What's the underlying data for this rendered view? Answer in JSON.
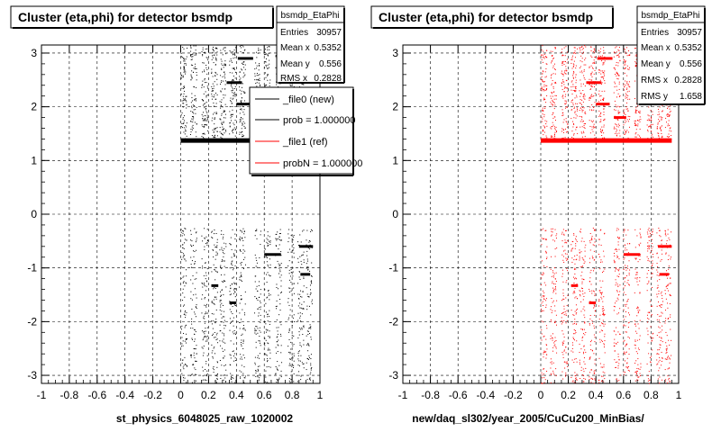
{
  "colors": {
    "new": "#000000",
    "ref": "#ff0000",
    "grid": "#000000",
    "background": "#ffffff"
  },
  "chart_data": [
    {
      "type": "scatter",
      "title": "Cluster (eta,phi) for detector bsmdp",
      "xlabel": "st_physics_6048025_raw_1020002",
      "ylabel": "",
      "xlim": [
        -1,
        1
      ],
      "ylim": [
        -3.15,
        3.15
      ],
      "x_ticks": [
        "-1",
        "-0.8",
        "-0.6",
        "-0.4",
        "-0.2",
        "0",
        "0.2",
        "0.4",
        "0.6",
        "0.8",
        "1"
      ],
      "y_ticks": [
        "3",
        "2",
        "1",
        "0",
        "-1",
        "-2",
        "-3"
      ],
      "grid": true,
      "series_color": "#000000",
      "stats": {
        "name": "bsmdp_EtaPhi",
        "rows": [
          {
            "label": "Entries",
            "value": "30957"
          },
          {
            "label": "Mean x",
            "value": "0.5352"
          },
          {
            "label": "Mean y",
            "value": "0.556"
          },
          {
            "label": "RMS x",
            "value": "0.2828"
          }
        ]
      },
      "legend": {
        "placement": "top-right",
        "entries": [
          {
            "label": "_file0 (new)",
            "color": "#000000"
          },
          {
            "label": "prob = 1.000000",
            "color": "#000000"
          },
          {
            "label": "_file1 (ref)",
            "color": "#ff0000"
          },
          {
            "label": "probN = 1.000000",
            "color": "#ff0000"
          }
        ]
      },
      "scatter_bands": {
        "eta_min": 0.0,
        "eta_max": 0.95,
        "phi_upper": [
          1.35,
          3.15
        ],
        "phi_lower": [
          -3.15,
          -0.25
        ]
      }
    },
    {
      "type": "scatter",
      "title": "Cluster (eta,phi) for detector bsmdp",
      "xlabel": "new/daq_sl302/year_2005/CuCu200_MinBias/",
      "ylabel": "",
      "xlim": [
        -1,
        1
      ],
      "ylim": [
        -3.15,
        3.15
      ],
      "x_ticks": [
        "-1",
        "-0.8",
        "-0.6",
        "-0.4",
        "-0.2",
        "0",
        "0.2",
        "0.4",
        "0.6",
        "0.8",
        "1"
      ],
      "y_ticks": [
        "3",
        "2",
        "1",
        "0",
        "-1",
        "-2",
        "-3"
      ],
      "grid": true,
      "series_color": "#ff0000",
      "stats": {
        "name": "bsmdp_EtaPhi",
        "rows": [
          {
            "label": "Entries",
            "value": "30957"
          },
          {
            "label": "Mean x",
            "value": "0.5352"
          },
          {
            "label": "Mean y",
            "value": "0.556"
          },
          {
            "label": "RMS x",
            "value": "0.2828"
          },
          {
            "label": "RMS y",
            "value": "1.658"
          }
        ]
      },
      "scatter_bands": {
        "eta_min": 0.0,
        "eta_max": 0.95,
        "phi_upper": [
          1.35,
          3.15
        ],
        "phi_lower": [
          -3.15,
          -0.25
        ]
      }
    }
  ]
}
